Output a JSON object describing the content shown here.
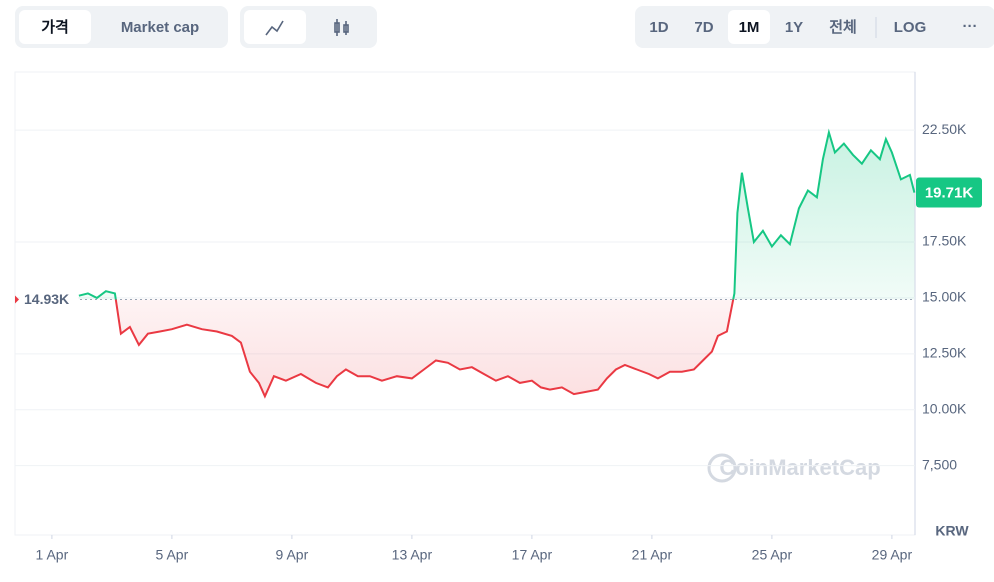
{
  "ui": {
    "tabs": [
      "가격",
      "Market cap"
    ],
    "ranges": [
      "1D",
      "7D",
      "1M",
      "1Y",
      "전체",
      "LOG"
    ],
    "more": "···",
    "active_tab": 0,
    "active_range": 2,
    "watermark": "CoinMarketCap"
  },
  "chart_data": {
    "type": "line",
    "unit": "KRW",
    "x": [
      1.9,
      2.2,
      2.5,
      2.8,
      3.1,
      3.3,
      3.6,
      3.9,
      4.2,
      4.6,
      5.0,
      5.5,
      6.0,
      6.5,
      7.0,
      7.3,
      7.6,
      7.9,
      8.1,
      8.4,
      8.8,
      9.3,
      9.8,
      10.2,
      10.5,
      10.8,
      11.2,
      11.6,
      12.0,
      12.5,
      13.0,
      13.4,
      13.8,
      14.2,
      14.6,
      15.0,
      15.4,
      15.8,
      16.2,
      16.6,
      17.0,
      17.3,
      17.6,
      18.0,
      18.4,
      18.8,
      19.2,
      19.5,
      19.8,
      20.1,
      20.5,
      20.9,
      21.2,
      21.6,
      22.0,
      22.4,
      22.7,
      23.0,
      23.2,
      23.5,
      23.75,
      23.85,
      24.0,
      24.2,
      24.4,
      24.7,
      25.0,
      25.3,
      25.6,
      25.9,
      26.2,
      26.5,
      26.7,
      26.9,
      27.1,
      27.4,
      27.7,
      28.0,
      28.3,
      28.6,
      28.8,
      29.0,
      29.3,
      29.6,
      29.75
    ],
    "values": [
      15100,
      15200,
      15000,
      15300,
      15200,
      13400,
      13700,
      12900,
      13400,
      13500,
      13600,
      13800,
      13600,
      13500,
      13300,
      13000,
      11700,
      11200,
      10600,
      11500,
      11300,
      11600,
      11200,
      11000,
      11500,
      11800,
      11500,
      11500,
      11300,
      11500,
      11400,
      11800,
      12200,
      12100,
      11800,
      11900,
      11600,
      11300,
      11500,
      11200,
      11300,
      11000,
      10900,
      11000,
      10700,
      10800,
      10900,
      11400,
      11800,
      12000,
      11800,
      11600,
      11400,
      11700,
      11700,
      11800,
      12200,
      12600,
      13300,
      13500,
      15200,
      18800,
      20600,
      19000,
      17500,
      18000,
      17300,
      17800,
      17400,
      19000,
      19800,
      19500,
      21200,
      22400,
      21500,
      21900,
      21400,
      21000,
      21600,
      21200,
      22100,
      21500,
      20300,
      20500,
      19710
    ],
    "up_color": "#16c784",
    "down_color": "#ea3943",
    "baseline": {
      "value": 14930,
      "label": "14.93K"
    },
    "last": {
      "value": 19710,
      "label": "19.71K"
    },
    "xlim": [
      -0.23,
      29.77
    ],
    "xticks": [
      {
        "value": 1,
        "label": "1 Apr"
      },
      {
        "value": 5,
        "label": "5 Apr"
      },
      {
        "value": 9,
        "label": "9 Apr"
      },
      {
        "value": 13,
        "label": "13 Apr"
      },
      {
        "value": 17,
        "label": "17 Apr"
      },
      {
        "value": 21,
        "label": "21 Apr"
      },
      {
        "value": 25,
        "label": "25 Apr"
      },
      {
        "value": 29,
        "label": "29 Apr"
      }
    ],
    "ylim": [
      4400,
      25100
    ],
    "yticks": [
      {
        "value": 7500,
        "label": "7,500"
      },
      {
        "value": 10000,
        "label": "10.00K"
      },
      {
        "value": 12500,
        "label": "12.50K"
      },
      {
        "value": 15000,
        "label": "15.00K"
      },
      {
        "value": 17500,
        "label": "17.50K"
      },
      {
        "value": 22500,
        "label": "22.50K"
      }
    ],
    "grid": true
  }
}
